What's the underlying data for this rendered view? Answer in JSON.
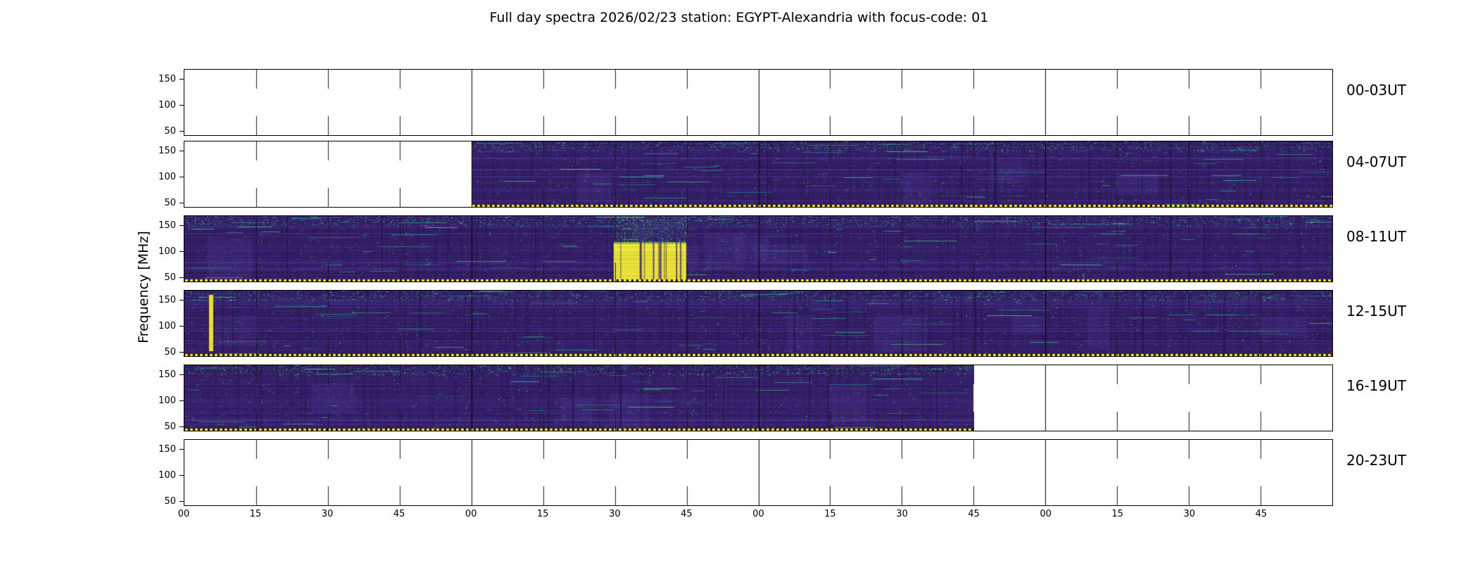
{
  "title": "Full day spectra 2026/02/23 station: EGYPT-Alexandria with focus-code: 01",
  "chart_data": {
    "type": "heatmap",
    "title": "Full day spectra 2026/02/23 station: EGYPT-Alexandria with focus-code: 01",
    "date": "2026/02/23",
    "station": "EGYPT-Alexandria",
    "focus_code": "01",
    "ylabel": "Frequency [MHz]",
    "ylim": [
      45,
      160
    ],
    "yticks": [
      "150",
      "100",
      "50"
    ],
    "xticks": [
      "00",
      "15",
      "30",
      "45",
      "00",
      "15",
      "30",
      "45",
      "00",
      "15",
      "30",
      "45",
      "00",
      "15",
      "30",
      "45"
    ],
    "hours_per_row": 4,
    "grid": "hour-boundary vertical lines; inward 15-min ticks; no gridlines",
    "legend": "none",
    "rows": [
      {
        "label": "00-03UT",
        "segments": [],
        "bursts": []
      },
      {
        "label": "04-07UT",
        "segments": [
          {
            "start": 0.25,
            "end": 1.0
          }
        ],
        "bursts": []
      },
      {
        "label": "08-11UT",
        "segments": [
          {
            "start": 0.0,
            "end": 1.0
          }
        ],
        "bursts": [
          {
            "type": "strong",
            "x0": 0.374,
            "x1": 0.437,
            "core_y0": 0.42
          }
        ]
      },
      {
        "label": "12-15UT",
        "segments": [
          {
            "start": 0.0,
            "end": 1.0
          }
        ],
        "bursts": [
          {
            "type": "stripe",
            "x0": 0.0213,
            "x1": 0.0254,
            "y0": 0.06,
            "y1": 0.93
          }
        ]
      },
      {
        "label": "16-19UT",
        "segments": [
          {
            "start": 0.0,
            "end": 0.6875
          }
        ],
        "bursts": []
      },
      {
        "label": "20-23UT",
        "segments": [],
        "bursts": []
      }
    ],
    "colors": {
      "background": "#ffffff",
      "spectrum_base": "#331d63",
      "streak_light": "#4a3499",
      "streak_dark": "#22134a",
      "speckle_teal": "#21918c",
      "speckle_green": "#35b779",
      "burst_yellow": "#e9dd33",
      "marker_line_yellow": "#ffe81a",
      "axis": "#000000"
    }
  }
}
